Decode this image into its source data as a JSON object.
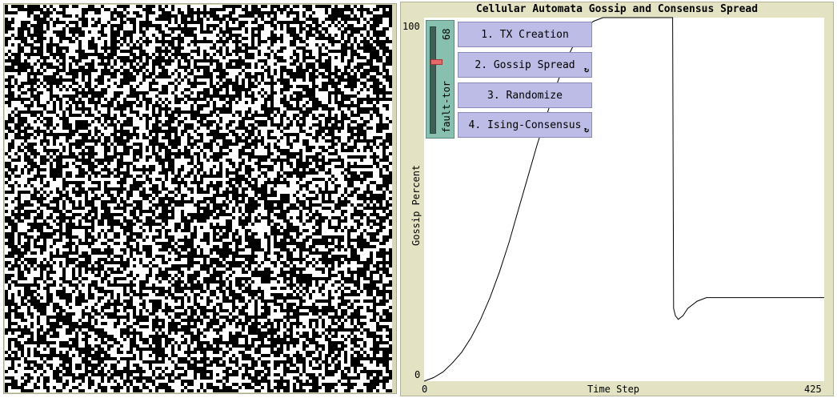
{
  "plot": {
    "title": "Cellular Automata Gossip and Consensus Spread",
    "ylabel": "Gossip Percent",
    "xlabel": "Time Step",
    "y_min_label": "0",
    "y_max_label": "100",
    "x_min_label": "0",
    "x_max_label": "425"
  },
  "slider": {
    "label": "fault-tor",
    "value": "68",
    "fraction": 0.68
  },
  "buttons": [
    {
      "label": "1. TX Creation",
      "forever": false
    },
    {
      "label": "2. Gossip Spread",
      "forever": true
    },
    {
      "label": "3. Randomize",
      "forever": false
    },
    {
      "label": "4. Ising-Consensus",
      "forever": true
    }
  ],
  "colors": {
    "world_on": "#ffffff",
    "world_off": "#000000",
    "plot_bg": "#e3e3c4",
    "button_bg": "#bcbce6",
    "slider_bg": "#88c0b0"
  },
  "chart_data": {
    "type": "line",
    "title": "Cellular Automata Gossip and Consensus Spread",
    "xlabel": "Time Step",
    "ylabel": "Gossip Percent",
    "xlim": [
      0,
      425
    ],
    "ylim": [
      0,
      100
    ],
    "grid": false,
    "series": [
      {
        "x": [
          0,
          10,
          20,
          30,
          40,
          50,
          60,
          70,
          80,
          90,
          100,
          110,
          120,
          130,
          140,
          150,
          160,
          170,
          180,
          190,
          200,
          210,
          220,
          230,
          240,
          250,
          260,
          264,
          265,
          267,
          270,
          275,
          280,
          290,
          300,
          320,
          340,
          360,
          380,
          400,
          425
        ],
        "y": [
          0,
          1,
          2.5,
          5,
          8,
          12,
          17,
          23,
          30,
          38,
          47,
          56,
          65,
          73,
          81,
          88,
          93,
          97,
          99,
          100,
          100,
          100,
          100,
          100,
          100,
          100,
          100,
          100,
          20,
          18,
          17,
          18,
          20,
          22,
          23,
          23,
          23,
          23,
          23,
          23,
          23
        ]
      }
    ]
  }
}
